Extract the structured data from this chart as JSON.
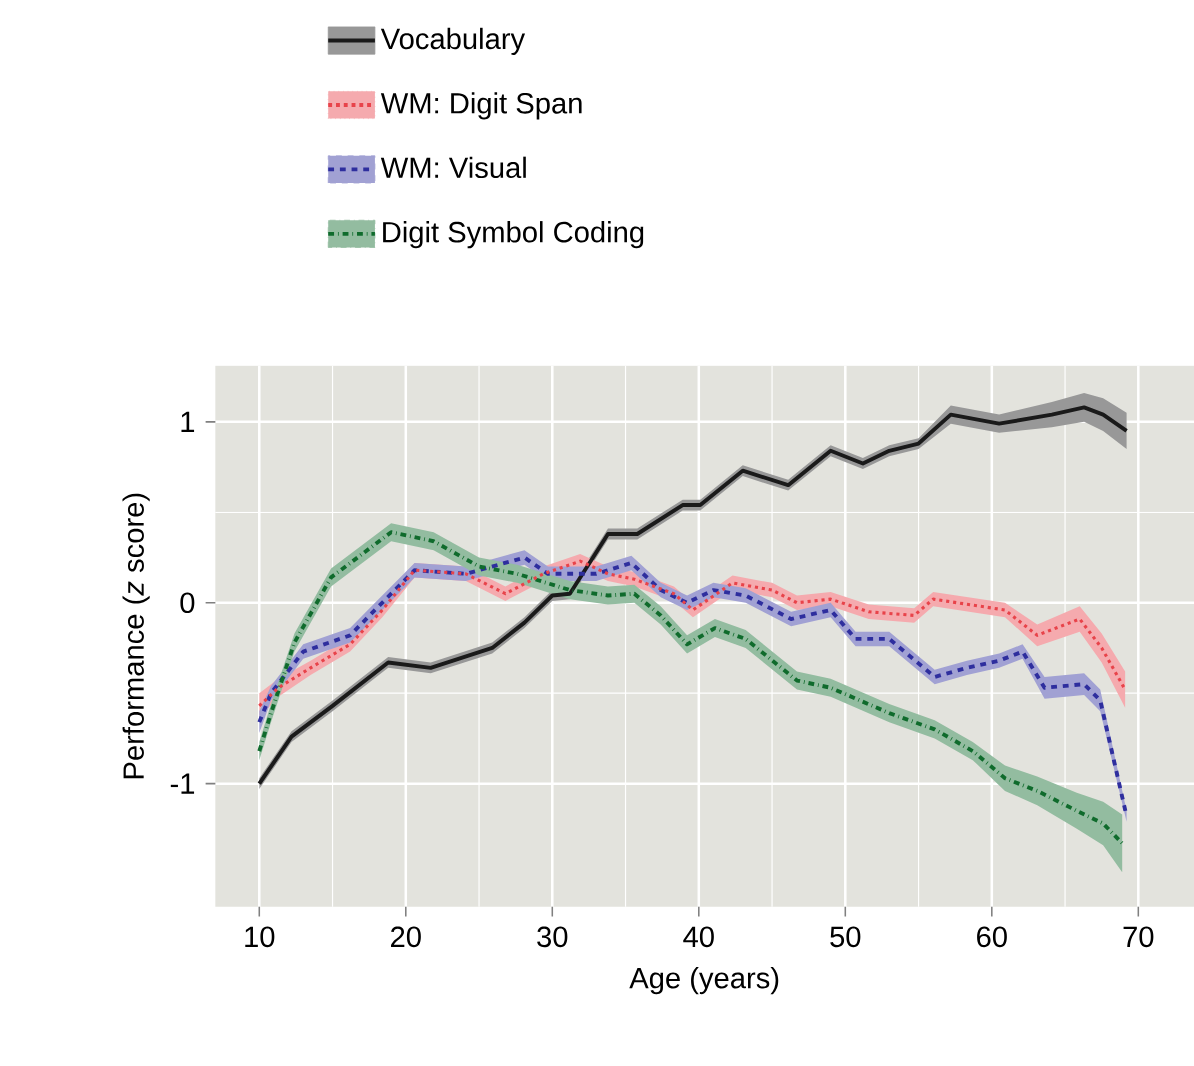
{
  "chart_data": {
    "type": "line",
    "xlabel": "Age (years)",
    "ylabel": "Performance (*z* score)",
    "xlim": [
      7,
      73.8
    ],
    "ylim": [
      -1.68,
      1.31
    ],
    "xticks": [
      10,
      20,
      30,
      40,
      50,
      60,
      70
    ],
    "yticks": [
      -1,
      0,
      1
    ],
    "grid": true,
    "legend": "top",
    "series": [
      {
        "name": "Vocabulary",
        "color": "#1a1a1a",
        "line_style": "solid",
        "x": [
          10,
          12.2,
          15,
          18.8,
          21.7,
          25.9,
          28.1,
          30,
          31.2,
          33.8,
          35.8,
          38.9,
          40.1,
          43,
          46.1,
          49,
          51.2,
          53,
          55,
          57.2,
          60.5,
          64.1,
          66.3,
          67.6,
          69.2
        ],
        "values": [
          -1.0,
          -0.74,
          -0.57,
          -0.33,
          -0.36,
          -0.25,
          -0.11,
          0.04,
          0.05,
          0.38,
          0.38,
          0.54,
          0.54,
          0.73,
          0.65,
          0.84,
          0.77,
          0.84,
          0.88,
          1.04,
          0.99,
          1.04,
          1.08,
          1.04,
          0.95
        ],
        "lower": [
          -1.03,
          -0.77,
          -0.6,
          -0.36,
          -0.39,
          -0.28,
          -0.14,
          0.01,
          0.02,
          0.35,
          0.35,
          0.51,
          0.51,
          0.7,
          0.62,
          0.81,
          0.74,
          0.81,
          0.85,
          0.99,
          0.94,
          0.97,
          1.0,
          0.95,
          0.85
        ],
        "upper": [
          -0.97,
          -0.71,
          -0.54,
          -0.3,
          -0.33,
          -0.22,
          -0.08,
          0.07,
          0.08,
          0.41,
          0.41,
          0.57,
          0.57,
          0.76,
          0.68,
          0.87,
          0.8,
          0.87,
          0.91,
          1.09,
          1.04,
          1.11,
          1.16,
          1.13,
          1.05
        ]
      },
      {
        "name": "WM: Digit Span",
        "color": "#e8434a",
        "line_style": "dotted",
        "x": [
          10,
          11.3,
          13.5,
          16.2,
          18.4,
          20.6,
          24.1,
          26.8,
          29.4,
          31.9,
          33.8,
          35.6,
          38.3,
          39.6,
          42.3,
          45,
          46.7,
          49,
          51.6,
          54.7,
          56,
          60.9,
          63.1,
          66,
          67.5,
          69.1
        ],
        "values": [
          -0.57,
          -0.47,
          -0.36,
          -0.23,
          -0.04,
          0.18,
          0.16,
          0.05,
          0.16,
          0.23,
          0.16,
          0.13,
          0.05,
          -0.04,
          0.11,
          0.07,
          0,
          0.02,
          -0.05,
          -0.07,
          0.02,
          -0.04,
          -0.18,
          -0.09,
          -0.25,
          -0.48
        ],
        "lower": [
          -0.64,
          -0.52,
          -0.4,
          -0.27,
          -0.08,
          0.14,
          0.12,
          0.01,
          0.12,
          0.19,
          0.12,
          0.09,
          0.01,
          -0.08,
          0.07,
          0.03,
          -0.04,
          -0.02,
          -0.09,
          -0.11,
          -0.02,
          -0.08,
          -0.24,
          -0.16,
          -0.33,
          -0.58
        ],
        "upper": [
          -0.5,
          -0.42,
          -0.32,
          -0.19,
          0.0,
          0.22,
          0.2,
          0.09,
          0.2,
          0.27,
          0.2,
          0.17,
          0.09,
          0.0,
          0.15,
          0.11,
          0.04,
          0.06,
          -0.01,
          -0.03,
          0.06,
          0.0,
          -0.12,
          -0.02,
          -0.17,
          -0.38
        ]
      },
      {
        "name": "WM: Visual",
        "color": "#2e2e9e",
        "line_style": "dashed",
        "x": [
          10,
          10.8,
          13,
          16.2,
          17.9,
          20.6,
          24.1,
          28.1,
          29.7,
          33,
          35.4,
          37.4,
          39.2,
          41,
          43.2,
          46.3,
          49,
          50.7,
          53,
          56.1,
          58.3,
          60.5,
          62.1,
          63.6,
          66.3,
          67.4,
          69.2
        ],
        "values": [
          -0.66,
          -0.5,
          -0.27,
          -0.18,
          -0.04,
          0.18,
          0.16,
          0.25,
          0.16,
          0.16,
          0.22,
          0.07,
          0,
          0.07,
          0.04,
          -0.09,
          -0.04,
          -0.2,
          -0.2,
          -0.41,
          -0.36,
          -0.32,
          -0.27,
          -0.47,
          -0.45,
          -0.54,
          -1.18
        ],
        "lower": [
          -0.72,
          -0.54,
          -0.31,
          -0.22,
          -0.08,
          0.14,
          0.12,
          0.21,
          0.12,
          0.12,
          0.18,
          0.03,
          -0.04,
          0.03,
          0.0,
          -0.13,
          -0.08,
          -0.24,
          -0.24,
          -0.45,
          -0.4,
          -0.36,
          -0.31,
          -0.53,
          -0.51,
          -0.6,
          -1.21
        ],
        "upper": [
          -0.6,
          -0.46,
          -0.23,
          -0.14,
          0.0,
          0.22,
          0.2,
          0.29,
          0.2,
          0.2,
          0.26,
          0.11,
          0.04,
          0.11,
          0.08,
          -0.05,
          0.0,
          -0.16,
          -0.16,
          -0.37,
          -0.32,
          -0.28,
          -0.23,
          -0.41,
          -0.39,
          -0.48,
          -1.15
        ]
      },
      {
        "name": "Digit Symbol Coding",
        "color": "#0f6b2c",
        "line_style": "dashdot",
        "x": [
          10,
          10.8,
          12.4,
          14.9,
          19,
          21.9,
          25,
          27.6,
          31.2,
          33.8,
          35.6,
          37.4,
          39.2,
          41.1,
          43.2,
          46.7,
          49,
          53,
          56.1,
          58.7,
          60.9,
          63.1,
          65.8,
          67.6,
          68.9
        ],
        "values": [
          -0.82,
          -0.61,
          -0.22,
          0.14,
          0.39,
          0.34,
          0.2,
          0.16,
          0.07,
          0.04,
          0.05,
          -0.07,
          -0.23,
          -0.14,
          -0.2,
          -0.43,
          -0.47,
          -0.61,
          -0.7,
          -0.82,
          -0.97,
          -1.04,
          -1.15,
          -1.22,
          -1.33
        ],
        "lower": [
          -0.87,
          -0.66,
          -0.27,
          0.09,
          0.34,
          0.29,
          0.15,
          0.11,
          0.02,
          -0.01,
          0.0,
          -0.12,
          -0.28,
          -0.19,
          -0.25,
          -0.48,
          -0.52,
          -0.66,
          -0.75,
          -0.87,
          -1.04,
          -1.12,
          -1.25,
          -1.34,
          -1.49
        ],
        "upper": [
          -0.77,
          -0.56,
          -0.17,
          0.19,
          0.44,
          0.39,
          0.25,
          0.21,
          0.12,
          0.09,
          0.1,
          -0.02,
          -0.18,
          -0.09,
          -0.15,
          -0.38,
          -0.42,
          -0.56,
          -0.65,
          -0.77,
          -0.9,
          -0.96,
          -1.05,
          -1.1,
          -1.17
        ]
      }
    ]
  }
}
